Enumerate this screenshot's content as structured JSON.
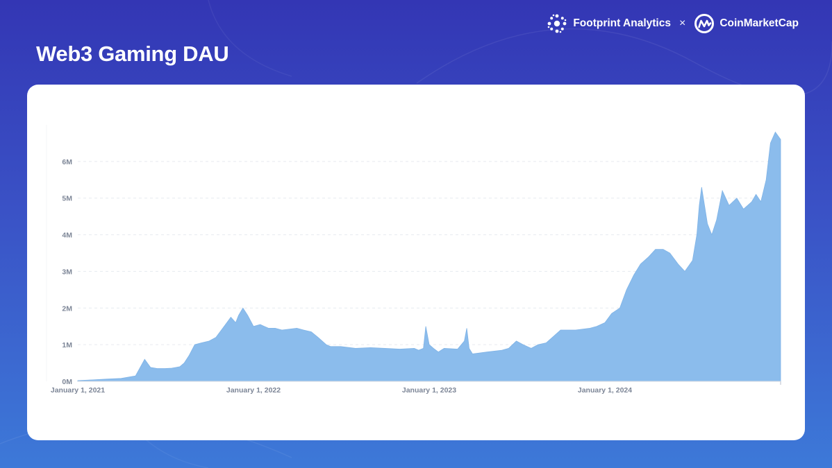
{
  "header": {
    "title": "Web3 Gaming DAU",
    "brands": [
      {
        "name": "Footprint Analytics",
        "icon": "footprint-logo-icon"
      },
      {
        "name": "CoinMarketCap",
        "icon": "coinmarketcap-logo-icon"
      }
    ],
    "separator": "×"
  },
  "colors": {
    "background_top": "#3336b4",
    "background_bottom": "#3d79d8",
    "area_fill": "#8bbcec",
    "card": "#ffffff"
  },
  "chart_data": {
    "type": "area",
    "title": "Web3 Gaming DAU",
    "xlabel": "",
    "ylabel": "",
    "x_ticks": [
      "January 1, 2021",
      "January 1, 2022",
      "January 1, 2023",
      "January 1, 2024"
    ],
    "y_ticks": [
      "0M",
      "1M",
      "2M",
      "3M",
      "4M",
      "5M",
      "6M"
    ],
    "xlim": [
      "2021-01-01",
      "2024-12-31"
    ],
    "ylim": [
      0,
      7000000
    ],
    "grid": "horizontal dashed",
    "legend": "none",
    "series": [
      {
        "x": [
          "2021-01-01",
          "2021-02-01",
          "2021-03-01",
          "2021-04-01",
          "2021-05-01",
          "2021-05-20",
          "2021-06-01",
          "2021-06-15",
          "2021-07-01",
          "2021-07-15",
          "2021-08-01",
          "2021-08-10",
          "2021-08-20",
          "2021-09-01",
          "2021-09-15",
          "2021-10-01",
          "2021-10-15",
          "2021-11-01",
          "2021-11-15",
          "2021-11-25",
          "2021-12-01",
          "2021-12-10",
          "2021-12-20",
          "2022-01-01",
          "2022-01-15",
          "2022-02-01",
          "2022-02-15",
          "2022-03-01",
          "2022-04-01",
          "2022-04-15",
          "2022-05-01",
          "2022-05-15",
          "2022-06-01",
          "2022-06-10",
          "2022-06-20",
          "2022-07-01",
          "2022-08-01",
          "2022-09-01",
          "2022-10-01",
          "2022-11-01",
          "2022-12-01",
          "2022-12-10",
          "2022-12-20",
          "2022-12-25",
          "2023-01-01",
          "2023-01-10",
          "2023-01-20",
          "2023-02-01",
          "2023-03-01",
          "2023-03-15",
          "2023-03-20",
          "2023-03-25",
          "2023-04-01",
          "2023-05-01",
          "2023-06-01",
          "2023-06-15",
          "2023-07-01",
          "2023-07-15",
          "2023-08-01",
          "2023-08-15",
          "2023-09-01",
          "2023-10-01",
          "2023-11-01",
          "2023-12-01",
          "2023-12-15",
          "2024-01-01",
          "2024-01-15",
          "2024-02-01",
          "2024-02-15",
          "2024-03-01",
          "2024-03-15",
          "2024-04-01",
          "2024-04-15",
          "2024-05-01",
          "2024-05-15",
          "2024-06-01",
          "2024-06-15",
          "2024-07-01",
          "2024-07-10",
          "2024-07-15",
          "2024-07-20",
          "2024-08-01",
          "2024-08-10",
          "2024-08-20",
          "2024-09-01",
          "2024-09-15",
          "2024-10-01",
          "2024-10-15",
          "2024-11-01",
          "2024-11-10",
          "2024-11-20",
          "2024-12-01",
          "2024-12-10",
          "2024-12-20",
          "2024-12-31"
        ],
        "values": [
          20000,
          40000,
          60000,
          80000,
          150000,
          600000,
          380000,
          350000,
          350000,
          360000,
          400000,
          500000,
          700000,
          1000000,
          1050000,
          1100000,
          1200000,
          1500000,
          1750000,
          1600000,
          1800000,
          2000000,
          1800000,
          1500000,
          1550000,
          1450000,
          1450000,
          1400000,
          1450000,
          1400000,
          1350000,
          1200000,
          1000000,
          950000,
          950000,
          950000,
          900000,
          920000,
          900000,
          880000,
          900000,
          850000,
          900000,
          1500000,
          1000000,
          900000,
          800000,
          900000,
          880000,
          1100000,
          1450000,
          900000,
          750000,
          800000,
          850000,
          900000,
          1100000,
          1000000,
          900000,
          1000000,
          1050000,
          1400000,
          1400000,
          1450000,
          1500000,
          1600000,
          1850000,
          2000000,
          2500000,
          2900000,
          3200000,
          3400000,
          3600000,
          3600000,
          3500000,
          3200000,
          3000000,
          3300000,
          4000000,
          4800000,
          5300000,
          4300000,
          4000000,
          4400000,
          5200000,
          4800000,
          5000000,
          4700000,
          4900000,
          5100000,
          4900000,
          5500000,
          6500000,
          6800000,
          6600000
        ]
      }
    ]
  }
}
